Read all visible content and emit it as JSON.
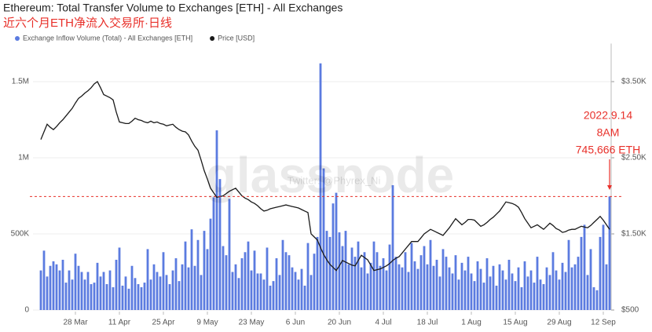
{
  "chart_data": {
    "type": "bar",
    "title": "Ethereum: Total Transfer Volume to Exchanges [ETH] - All Exchanges",
    "subtitle": "近六个月ETH净流入交易所·日线",
    "watermark": "glassnode",
    "credit": "Twitter: @Phyrex_Ni",
    "annotations": [
      "2022.9.14",
      "8AM",
      "745,666 ETH"
    ],
    "annotation_color": "#e8302a",
    "categories": [
      null,
      null,
      null,
      null,
      null,
      null,
      null,
      null,
      null,
      null,
      null,
      "28 Mar",
      null,
      null,
      null,
      null,
      null,
      null,
      null,
      null,
      null,
      null,
      null,
      null,
      null,
      "11 Apr",
      null,
      null,
      null,
      null,
      null,
      null,
      null,
      null,
      null,
      null,
      null,
      null,
      null,
      "25 Apr",
      null,
      null,
      null,
      null,
      null,
      null,
      null,
      null,
      null,
      null,
      null,
      null,
      null,
      "9 May",
      null,
      null,
      null,
      null,
      null,
      null,
      null,
      null,
      null,
      null,
      null,
      null,
      null,
      "23 May",
      null,
      null,
      null,
      null,
      null,
      null,
      null,
      null,
      null,
      null,
      null,
      null,
      null,
      "6 Jun",
      null,
      null,
      null,
      null,
      null,
      null,
      null,
      null,
      null,
      null,
      null,
      null,
      null,
      "20 Jun",
      null,
      null,
      null,
      null,
      null,
      null,
      null,
      null,
      null,
      null,
      null,
      null,
      null,
      "4 Jul",
      null,
      null,
      null,
      null,
      null,
      null,
      null,
      null,
      null,
      null,
      null,
      null,
      null,
      "18 Jul",
      null,
      null,
      null,
      null,
      null,
      null,
      null,
      null,
      null,
      null,
      null,
      null,
      null,
      "1 Aug",
      null,
      null,
      null,
      null,
      null,
      null,
      null,
      null,
      null,
      null,
      null,
      null,
      null,
      "15 Aug",
      null,
      null,
      null,
      null,
      null,
      null,
      null,
      null,
      null,
      null,
      null,
      null,
      null,
      "29 Aug",
      null,
      null,
      null,
      null,
      null,
      null,
      null,
      null,
      null,
      null,
      null,
      null,
      null,
      "12 Sep",
      null,
      null
    ],
    "series": [
      {
        "name": "Exchange Inflow Volume (Total) - All Exchanges [ETH]",
        "color": "#5b7be0",
        "values": [
          260000,
          390000,
          220000,
          290000,
          320000,
          300000,
          260000,
          330000,
          180000,
          260000,
          200000,
          370000,
          290000,
          250000,
          200000,
          250000,
          170000,
          180000,
          310000,
          220000,
          250000,
          170000,
          260000,
          150000,
          330000,
          410000,
          160000,
          220000,
          140000,
          290000,
          210000,
          170000,
          150000,
          180000,
          400000,
          200000,
          300000,
          250000,
          220000,
          380000,
          230000,
          170000,
          260000,
          340000,
          190000,
          300000,
          450000,
          280000,
          530000,
          290000,
          460000,
          230000,
          520000,
          400000,
          600000,
          740000,
          1180000,
          860000,
          420000,
          360000,
          730000,
          250000,
          300000,
          210000,
          340000,
          380000,
          450000,
          260000,
          390000,
          240000,
          240000,
          200000,
          410000,
          160000,
          190000,
          340000,
          230000,
          460000,
          380000,
          360000,
          280000,
          250000,
          200000,
          270000,
          160000,
          440000,
          230000,
          370000,
          480000,
          1620000,
          930000,
          520000,
          480000,
          700000,
          770000,
          510000,
          420000,
          520000,
          300000,
          410000,
          350000,
          450000,
          280000,
          380000,
          240000,
          310000,
          450000,
          380000,
          290000,
          340000,
          260000,
          430000,
          820000,
          350000,
          300000,
          280000,
          380000,
          250000,
          440000,
          320000,
          270000,
          360000,
          420000,
          300000,
          460000,
          290000,
          330000,
          220000,
          400000,
          350000,
          280000,
          240000,
          360000,
          200000,
          310000,
          260000,
          350000,
          240000,
          190000,
          320000,
          270000,
          180000,
          340000,
          220000,
          290000,
          160000,
          300000,
          260000,
          200000,
          330000,
          240000,
          190000,
          280000,
          150000,
          320000,
          220000,
          260000,
          180000,
          350000,
          200000,
          170000,
          280000,
          230000,
          380000,
          260000,
          200000,
          310000,
          250000,
          460000,
          280000,
          300000,
          350000,
          480000,
          560000,
          230000,
          400000,
          150000,
          130000,
          480000,
          560000,
          300000,
          745666
        ]
      },
      {
        "name": "Price [USD]",
        "type": "line",
        "axis": "y2",
        "color": "#1a1a1a",
        "values": [
          2740,
          2840,
          2940,
          2900,
          2870,
          2910,
          2960,
          3000,
          3050,
          3100,
          3150,
          3220,
          3280,
          3310,
          3350,
          3380,
          3420,
          3470,
          3500,
          3420,
          3330,
          3310,
          3290,
          3260,
          3100,
          2970,
          2960,
          2950,
          2950,
          2980,
          3020,
          3000,
          2990,
          2970,
          2960,
          2980,
          2960,
          2970,
          2950,
          2940,
          2920,
          2930,
          2940,
          2900,
          2870,
          2850,
          2840,
          2800,
          2720,
          2650,
          2600,
          2470,
          2330,
          2220,
          2100,
          2040,
          1980,
          1990,
          2000,
          2030,
          2060,
          2080,
          2100,
          2050,
          2000,
          1970,
          1950,
          1920,
          1900,
          1870,
          1830,
          1800,
          1810,
          1830,
          1840,
          1850,
          1860,
          1870,
          1880,
          1870,
          1860,
          1850,
          1840,
          1820,
          1800,
          1780,
          1500,
          1460,
          1420,
          1320,
          1230,
          1160,
          1100,
          1060,
          1020,
          1080,
          1150,
          1130,
          1110,
          1090,
          1080,
          1150,
          1220,
          1190,
          1160,
          1090,
          1020,
          1030,
          1040,
          1060,
          1080,
          1110,
          1150,
          1180,
          1200,
          1250,
          1300,
          1350,
          1400,
          1400,
          1400,
          1450,
          1500,
          1530,
          1560,
          1540,
          1520,
          1500,
          1480,
          1530,
          1580,
          1640,
          1700,
          1660,
          1620,
          1650,
          1690,
          1690,
          1680,
          1640,
          1600,
          1620,
          1650,
          1690,
          1720,
          1760,
          1800,
          1860,
          1920,
          1910,
          1900,
          1880,
          1850,
          1780,
          1700,
          1640,
          1580,
          1600,
          1620,
          1590,
          1560,
          1600,
          1640,
          1610,
          1570,
          1550,
          1520,
          1530,
          1550,
          1560,
          1560,
          1580,
          1600,
          1590,
          1580,
          1610,
          1650,
          1690,
          1730,
          1680,
          1620,
          1560
        ]
      }
    ],
    "ylim": [
      0,
      1750000
    ],
    "yticks": [
      0,
      {
        "value": 500000,
        "label": "500K"
      },
      {
        "value": 1000000,
        "label": "1M"
      },
      {
        "value": 1500000,
        "label": "1.5M"
      }
    ],
    "y2lim": [
      500,
      4000
    ],
    "y2ticks": [
      {
        "value": 500,
        "label": "$500"
      },
      {
        "value": 1500,
        "label": "$1.50K"
      },
      {
        "value": 2500,
        "label": "$2.50K"
      },
      {
        "value": 3500,
        "label": "$3.50K"
      }
    ],
    "grid": true
  }
}
